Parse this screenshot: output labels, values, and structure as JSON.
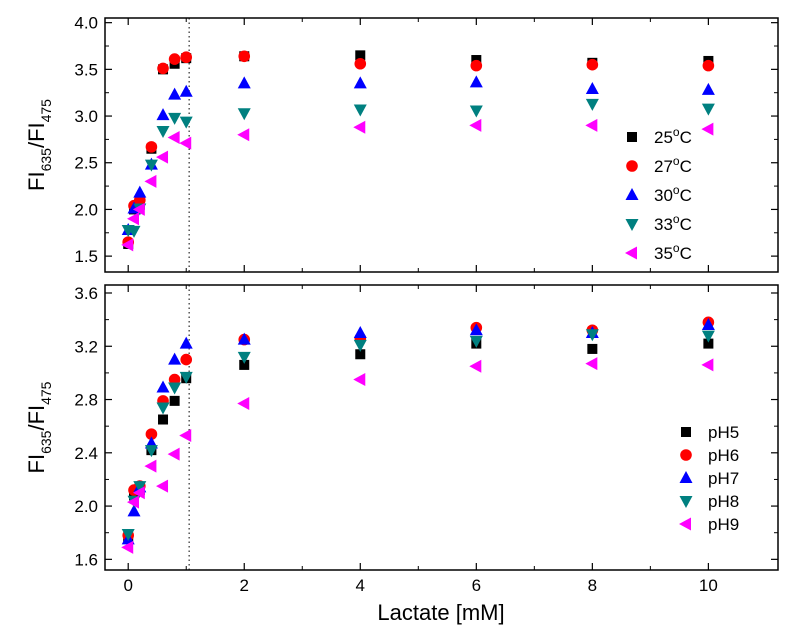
{
  "chart_data": [
    {
      "type": "scatter",
      "panel": "top",
      "ylabel": {
        "base": "FI",
        "sub1": "635",
        "sep": "/FI",
        "sub2": "475"
      },
      "xlabel": "",
      "xlim": [
        -0.4,
        11.2
      ],
      "ylim": [
        1.33,
        4.05
      ],
      "yticks": [
        "1.5",
        "2.0",
        "2.5",
        "3.0",
        "3.5",
        "4.0"
      ],
      "ytick_values": [
        1.5,
        2.0,
        2.5,
        3.0,
        3.5,
        4.0
      ],
      "xticks": [
        0,
        2,
        4,
        6,
        8,
        10
      ],
      "vline_x": 1.05,
      "legend_position": "center-right",
      "x": [
        0,
        0.1,
        0.2,
        0.4,
        0.6,
        0.8,
        1,
        2,
        4,
        6,
        8,
        10
      ],
      "series": [
        {
          "name": "25",
          "suffix": "C",
          "deg": "o",
          "marker": "square",
          "color": "#000000",
          "values": [
            1.63,
            2.0,
            2.05,
            2.65,
            3.5,
            3.56,
            3.62,
            3.64,
            3.65,
            3.6,
            3.57,
            3.59
          ]
        },
        {
          "name": "27",
          "suffix": "C",
          "deg": "o",
          "marker": "circle",
          "color": "#ff0000",
          "values": [
            1.65,
            2.04,
            2.1,
            2.67,
            3.51,
            3.61,
            3.63,
            3.64,
            3.56,
            3.54,
            3.55,
            3.54
          ]
        },
        {
          "name": "30",
          "suffix": "C",
          "deg": "o",
          "marker": "triangle-up",
          "color": "#0000ff",
          "values": [
            1.78,
            2.01,
            2.18,
            2.48,
            3.01,
            3.23,
            3.26,
            3.35,
            3.35,
            3.36,
            3.29,
            3.28
          ]
        },
        {
          "name": "33",
          "suffix": "C",
          "deg": "o",
          "marker": "triangle-down",
          "color": "#008080",
          "values": [
            1.78,
            1.77,
            2.01,
            2.48,
            2.84,
            2.98,
            2.94,
            3.03,
            3.07,
            3.06,
            3.13,
            3.08
          ]
        },
        {
          "name": "35",
          "suffix": "C",
          "deg": "o",
          "marker": "triangle-left",
          "color": "#ff00ff",
          "values": [
            1.62,
            1.9,
            2.0,
            2.3,
            2.56,
            2.77,
            2.71,
            2.8,
            2.88,
            2.9,
            2.9,
            2.86
          ]
        }
      ]
    },
    {
      "type": "scatter",
      "panel": "bottom",
      "ylabel": {
        "base": "FI",
        "sub1": "635",
        "sep": "/FI",
        "sub2": "475"
      },
      "xlabel": "Lactate [mM]",
      "xlim": [
        -0.4,
        11.2
      ],
      "ylim": [
        1.52,
        3.66
      ],
      "yticks": [
        "1.6",
        "2.0",
        "2.4",
        "2.8",
        "3.2",
        "3.6"
      ],
      "ytick_values": [
        1.6,
        2.0,
        2.4,
        2.8,
        3.2,
        3.6
      ],
      "xticks": [
        0,
        2,
        4,
        6,
        8,
        10
      ],
      "vline_x": 1.05,
      "legend_position": "bottom-right",
      "x": [
        0,
        0.1,
        0.2,
        0.4,
        0.6,
        0.8,
        1,
        2,
        4,
        6,
        8,
        10
      ],
      "series": [
        {
          "name": "pH5",
          "marker": "square",
          "color": "#000000",
          "values": [
            1.76,
            2.08,
            2.12,
            2.42,
            2.65,
            2.79,
            2.96,
            3.06,
            3.14,
            3.22,
            3.18,
            3.22
          ]
        },
        {
          "name": "pH6",
          "marker": "circle",
          "color": "#ff0000",
          "values": [
            1.78,
            2.12,
            2.15,
            2.54,
            2.79,
            2.95,
            3.1,
            3.25,
            3.26,
            3.34,
            3.32,
            3.38
          ]
        },
        {
          "name": "pH7",
          "marker": "triangle-up",
          "color": "#0000ff",
          "values": [
            1.75,
            1.96,
            2.14,
            2.47,
            2.89,
            3.1,
            3.22,
            3.25,
            3.3,
            3.32,
            3.3,
            3.36
          ]
        },
        {
          "name": "pH8",
          "marker": "triangle-down",
          "color": "#008080",
          "values": [
            1.79,
            2.04,
            2.15,
            2.42,
            2.74,
            2.89,
            2.97,
            3.12,
            3.21,
            3.24,
            3.29,
            3.28
          ]
        },
        {
          "name": "pH9",
          "marker": "triangle-left",
          "color": "#ff00ff",
          "values": [
            1.69,
            2.03,
            2.1,
            2.3,
            2.15,
            2.39,
            2.53,
            2.77,
            2.95,
            3.05,
            3.07,
            3.06
          ]
        }
      ]
    }
  ]
}
